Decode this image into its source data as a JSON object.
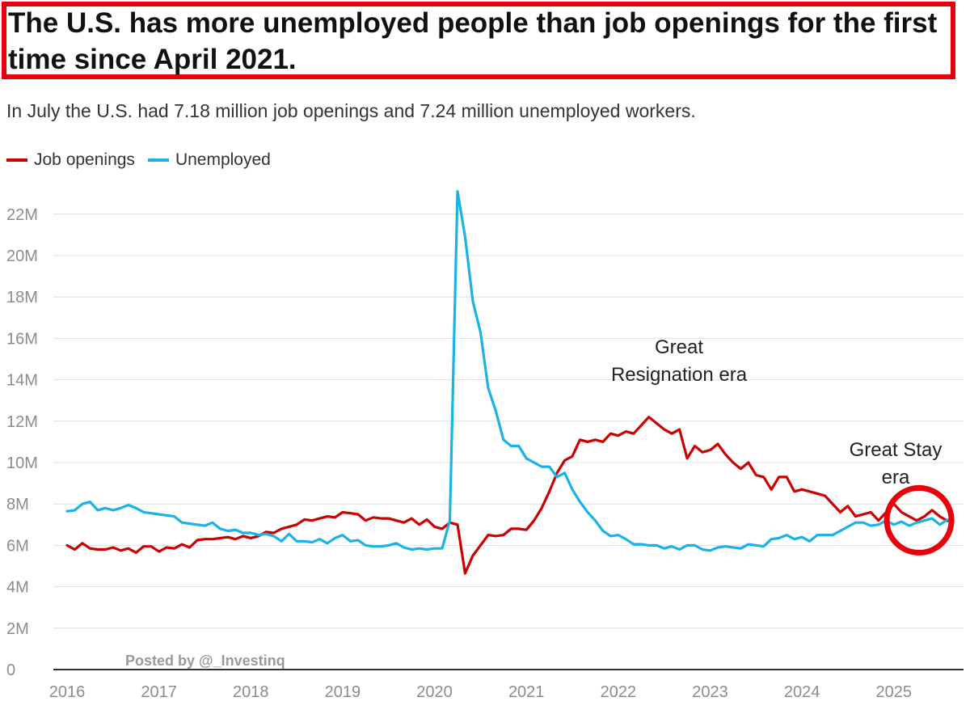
{
  "title": "The U.S. has more unemployed people than job openings for the first time since April 2021.",
  "subtitle": "In July the U.S. had 7.18 million job openings and 7.24 million unemployed workers.",
  "credit": "Posted by @_Investinq",
  "colors": {
    "job_openings": "#cc0000",
    "unemployed": "#1ab2ea",
    "highlight": "#e8000b",
    "grid": "#e0e0e0",
    "axis": "#333333"
  },
  "chart_data": {
    "type": "line",
    "title": "The U.S. has more unemployed people than job openings for the first time since April 2021.",
    "subtitle": "In July the U.S. had 7.18 million job openings and 7.24 million unemployed workers.",
    "xlabel": "",
    "ylabel": "",
    "x_start": "2016-01",
    "x_frequency": "monthly",
    "x_ticks": [
      "2016",
      "2017",
      "2018",
      "2019",
      "2020",
      "2021",
      "2022",
      "2023",
      "2024",
      "2025"
    ],
    "y_ticks": [
      "0",
      "2M",
      "4M",
      "6M",
      "8M",
      "10M",
      "12M",
      "14M",
      "16M",
      "18M",
      "20M",
      "22M"
    ],
    "ylim": [
      0,
      23000000
    ],
    "grid": "horizontal",
    "legend": "top-left",
    "annotations": [
      {
        "lines": [
          "Great",
          "Resignation era"
        ],
        "near": "2022"
      },
      {
        "lines": [
          "Great Stay",
          "era"
        ],
        "near": "2025"
      }
    ],
    "highlight": "circle around July 2025 values",
    "series": [
      {
        "name": "Job openings",
        "color": "#cc0000",
        "values": [
          6.0,
          5.8,
          6.1,
          5.85,
          5.8,
          5.8,
          5.9,
          5.75,
          5.85,
          5.65,
          5.95,
          5.95,
          5.7,
          5.9,
          5.85,
          6.05,
          5.9,
          6.25,
          6.3,
          6.3,
          6.35,
          6.4,
          6.3,
          6.45,
          6.35,
          6.45,
          6.65,
          6.6,
          6.8,
          6.9,
          7.0,
          7.25,
          7.2,
          7.3,
          7.4,
          7.35,
          7.6,
          7.55,
          7.5,
          7.2,
          7.35,
          7.3,
          7.3,
          7.2,
          7.1,
          7.3,
          7.0,
          7.25,
          6.9,
          6.8,
          7.1,
          7.0,
          4.65,
          5.5,
          6.0,
          6.5,
          6.45,
          6.5,
          6.8,
          6.8,
          6.75,
          7.2,
          7.8,
          8.6,
          9.5,
          10.1,
          10.3,
          11.1,
          11.0,
          11.1,
          11.0,
          11.4,
          11.3,
          11.5,
          11.4,
          11.8,
          12.2,
          11.9,
          11.6,
          11.4,
          11.6,
          10.2,
          10.8,
          10.5,
          10.6,
          10.9,
          10.4,
          10.0,
          9.7,
          10.0,
          9.4,
          9.3,
          8.7,
          9.3,
          9.3,
          8.6,
          8.7,
          8.6,
          8.5,
          8.4,
          8.0,
          7.6,
          7.9,
          7.4,
          7.5,
          7.6,
          7.2,
          7.6,
          8.0,
          7.6,
          7.4,
          7.2,
          7.4,
          7.7,
          7.4,
          7.18
        ]
      },
      {
        "name": "Unemployed",
        "color": "#1ab2ea",
        "values": [
          7.65,
          7.7,
          8.0,
          8.1,
          7.7,
          7.8,
          7.7,
          7.8,
          7.95,
          7.8,
          7.6,
          7.55,
          7.5,
          7.45,
          7.4,
          7.1,
          7.05,
          7.0,
          6.95,
          7.1,
          6.8,
          6.7,
          6.75,
          6.6,
          6.6,
          6.5,
          6.55,
          6.45,
          6.2,
          6.55,
          6.2,
          6.2,
          6.15,
          6.3,
          6.1,
          6.35,
          6.5,
          6.2,
          6.25,
          6.0,
          5.95,
          5.95,
          6.0,
          6.1,
          5.9,
          5.8,
          5.85,
          5.8,
          5.85,
          5.85,
          7.2,
          23.1,
          20.9,
          17.8,
          16.3,
          13.6,
          12.5,
          11.1,
          10.8,
          10.8,
          10.2,
          10.0,
          9.8,
          9.8,
          9.3,
          9.5,
          8.7,
          8.1,
          7.6,
          7.2,
          6.7,
          6.45,
          6.5,
          6.3,
          6.05,
          6.05,
          6.0,
          6.0,
          5.85,
          5.95,
          5.8,
          6.0,
          6.0,
          5.8,
          5.75,
          5.9,
          5.95,
          5.9,
          5.85,
          6.05,
          6.0,
          5.95,
          6.3,
          6.35,
          6.5,
          6.3,
          6.4,
          6.2,
          6.5,
          6.5,
          6.5,
          6.7,
          6.9,
          7.1,
          7.1,
          6.95,
          7.0,
          7.2,
          7.0,
          7.15,
          6.95,
          7.1,
          7.2,
          7.3,
          7.0,
          7.24
        ]
      }
    ]
  }
}
